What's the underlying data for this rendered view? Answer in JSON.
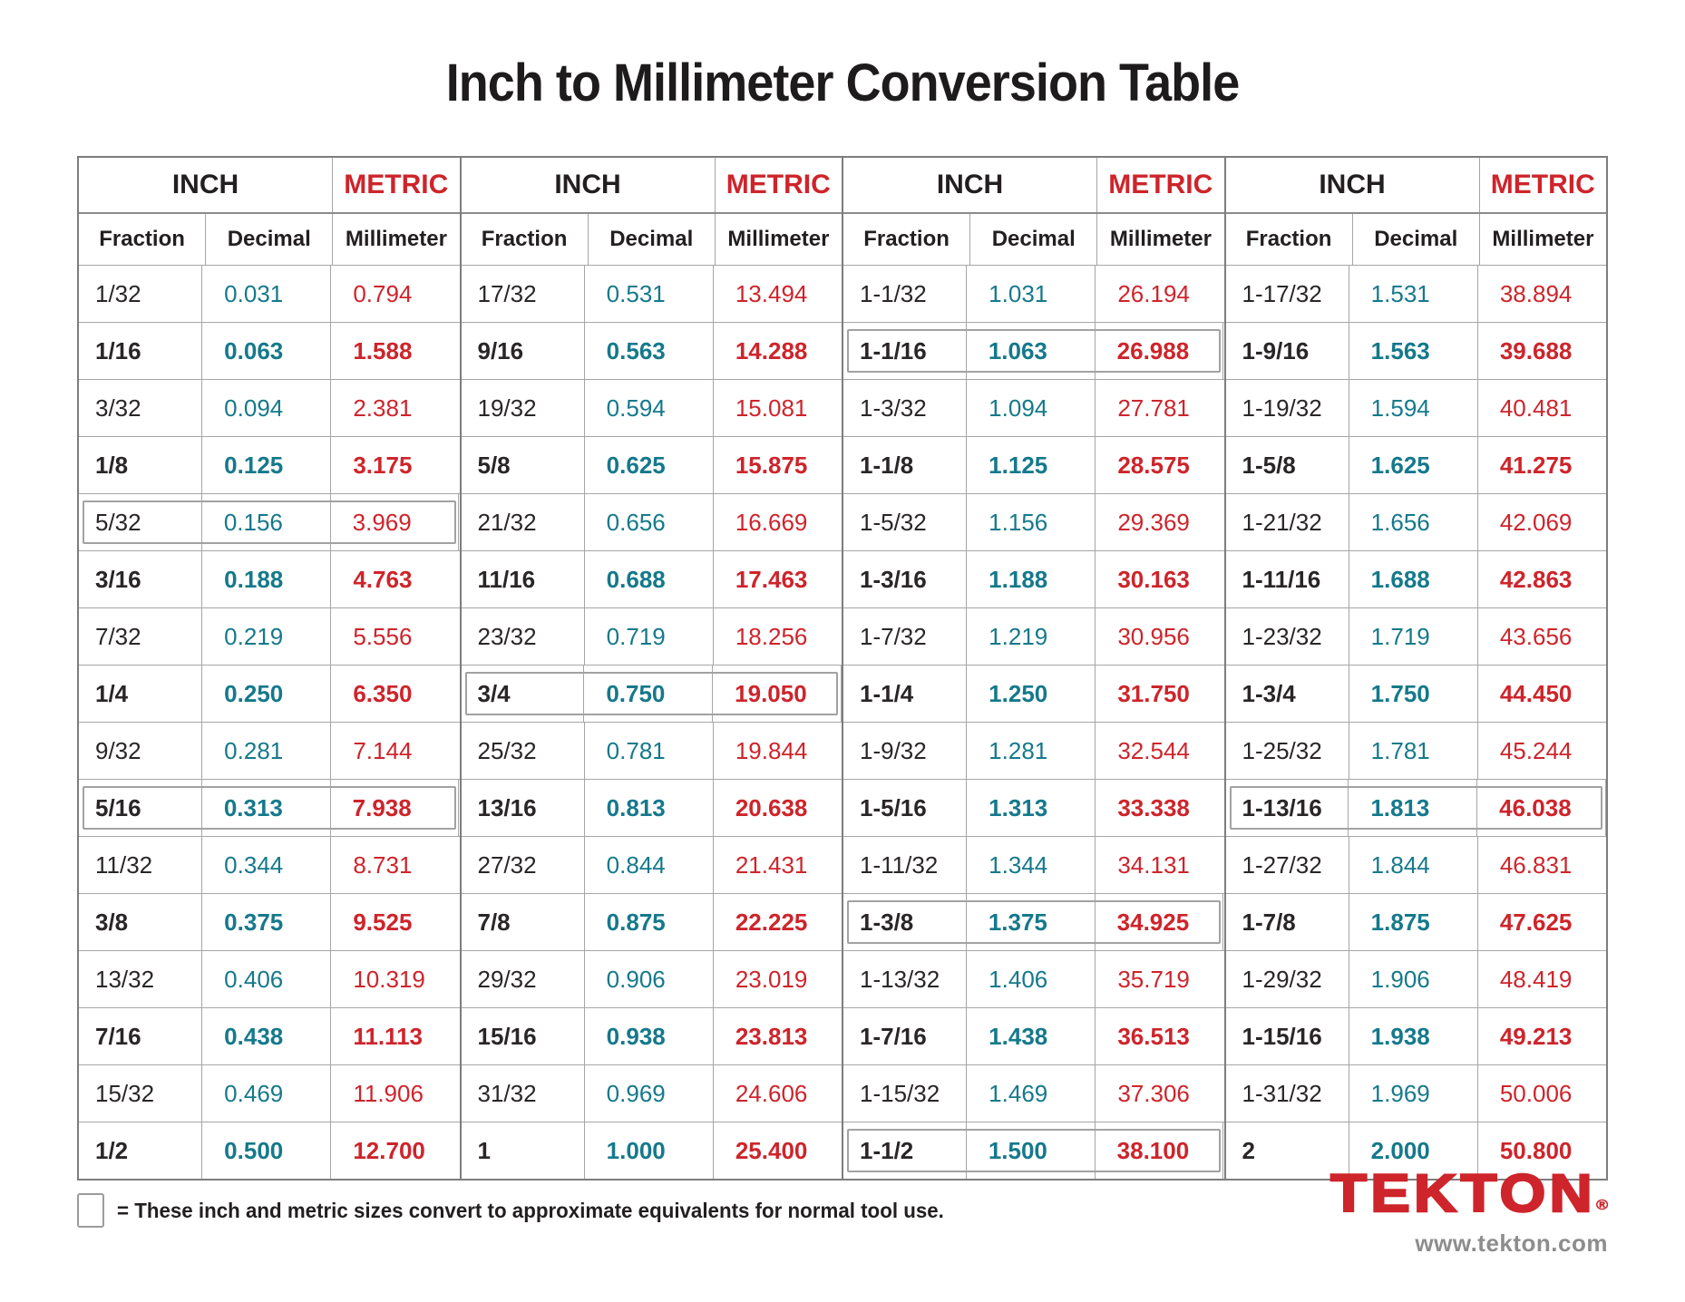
{
  "page": {
    "title": "Inch to Millimeter Conversion Table"
  },
  "colors": {
    "accent_red": "#ce242b",
    "value_teal": "#15798b",
    "text_dark": "#231f20",
    "border_dark": "#7d7d7d",
    "border_light": "#a6a6a6",
    "gray_text": "#8d8d8d"
  },
  "table": {
    "inch_label": "INCH",
    "metric_label": "METRIC",
    "columns": [
      "Fraction",
      "Decimal",
      "Millimeter"
    ],
    "groups": [
      {
        "rows": [
          {
            "fraction": "1/32",
            "decimal": "0.031",
            "mm": "0.794",
            "bold": false,
            "boxed": false
          },
          {
            "fraction": "1/16",
            "decimal": "0.063",
            "mm": "1.588",
            "bold": true,
            "boxed": false
          },
          {
            "fraction": "3/32",
            "decimal": "0.094",
            "mm": "2.381",
            "bold": false,
            "boxed": false
          },
          {
            "fraction": "1/8",
            "decimal": "0.125",
            "mm": "3.175",
            "bold": true,
            "boxed": false
          },
          {
            "fraction": "5/32",
            "decimal": "0.156",
            "mm": "3.969",
            "bold": false,
            "boxed": true
          },
          {
            "fraction": "3/16",
            "decimal": "0.188",
            "mm": "4.763",
            "bold": true,
            "boxed": false
          },
          {
            "fraction": "7/32",
            "decimal": "0.219",
            "mm": "5.556",
            "bold": false,
            "boxed": false
          },
          {
            "fraction": "1/4",
            "decimal": "0.250",
            "mm": "6.350",
            "bold": true,
            "boxed": false
          },
          {
            "fraction": "9/32",
            "decimal": "0.281",
            "mm": "7.144",
            "bold": false,
            "boxed": false
          },
          {
            "fraction": "5/16",
            "decimal": "0.313",
            "mm": "7.938",
            "bold": true,
            "boxed": true
          },
          {
            "fraction": "11/32",
            "decimal": "0.344",
            "mm": "8.731",
            "bold": false,
            "boxed": false
          },
          {
            "fraction": "3/8",
            "decimal": "0.375",
            "mm": "9.525",
            "bold": true,
            "boxed": false
          },
          {
            "fraction": "13/32",
            "decimal": "0.406",
            "mm": "10.319",
            "bold": false,
            "boxed": false
          },
          {
            "fraction": "7/16",
            "decimal": "0.438",
            "mm": "11.113",
            "bold": true,
            "boxed": false
          },
          {
            "fraction": "15/32",
            "decimal": "0.469",
            "mm": "11.906",
            "bold": false,
            "boxed": false
          },
          {
            "fraction": "1/2",
            "decimal": "0.500",
            "mm": "12.700",
            "bold": true,
            "boxed": false
          }
        ]
      },
      {
        "rows": [
          {
            "fraction": "17/32",
            "decimal": "0.531",
            "mm": "13.494",
            "bold": false,
            "boxed": false
          },
          {
            "fraction": "9/16",
            "decimal": "0.563",
            "mm": "14.288",
            "bold": true,
            "boxed": false
          },
          {
            "fraction": "19/32",
            "decimal": "0.594",
            "mm": "15.081",
            "bold": false,
            "boxed": false
          },
          {
            "fraction": "5/8",
            "decimal": "0.625",
            "mm": "15.875",
            "bold": true,
            "boxed": false
          },
          {
            "fraction": "21/32",
            "decimal": "0.656",
            "mm": "16.669",
            "bold": false,
            "boxed": false
          },
          {
            "fraction": "11/16",
            "decimal": "0.688",
            "mm": "17.463",
            "bold": true,
            "boxed": false
          },
          {
            "fraction": "23/32",
            "decimal": "0.719",
            "mm": "18.256",
            "bold": false,
            "boxed": false
          },
          {
            "fraction": "3/4",
            "decimal": "0.750",
            "mm": "19.050",
            "bold": true,
            "boxed": true
          },
          {
            "fraction": "25/32",
            "decimal": "0.781",
            "mm": "19.844",
            "bold": false,
            "boxed": false
          },
          {
            "fraction": "13/16",
            "decimal": "0.813",
            "mm": "20.638",
            "bold": true,
            "boxed": false
          },
          {
            "fraction": "27/32",
            "decimal": "0.844",
            "mm": "21.431",
            "bold": false,
            "boxed": false
          },
          {
            "fraction": "7/8",
            "decimal": "0.875",
            "mm": "22.225",
            "bold": true,
            "boxed": false
          },
          {
            "fraction": "29/32",
            "decimal": "0.906",
            "mm": "23.019",
            "bold": false,
            "boxed": false
          },
          {
            "fraction": "15/16",
            "decimal": "0.938",
            "mm": "23.813",
            "bold": true,
            "boxed": false
          },
          {
            "fraction": "31/32",
            "decimal": "0.969",
            "mm": "24.606",
            "bold": false,
            "boxed": false
          },
          {
            "fraction": "1",
            "decimal": "1.000",
            "mm": "25.400",
            "bold": true,
            "boxed": false
          }
        ]
      },
      {
        "rows": [
          {
            "fraction": "1-1/32",
            "decimal": "1.031",
            "mm": "26.194",
            "bold": false,
            "boxed": false
          },
          {
            "fraction": "1-1/16",
            "decimal": "1.063",
            "mm": "26.988",
            "bold": true,
            "boxed": true
          },
          {
            "fraction": "1-3/32",
            "decimal": "1.094",
            "mm": "27.781",
            "bold": false,
            "boxed": false
          },
          {
            "fraction": "1-1/8",
            "decimal": "1.125",
            "mm": "28.575",
            "bold": true,
            "boxed": false
          },
          {
            "fraction": "1-5/32",
            "decimal": "1.156",
            "mm": "29.369",
            "bold": false,
            "boxed": false
          },
          {
            "fraction": "1-3/16",
            "decimal": "1.188",
            "mm": "30.163",
            "bold": true,
            "boxed": false
          },
          {
            "fraction": "1-7/32",
            "decimal": "1.219",
            "mm": "30.956",
            "bold": false,
            "boxed": false
          },
          {
            "fraction": "1-1/4",
            "decimal": "1.250",
            "mm": "31.750",
            "bold": true,
            "boxed": false
          },
          {
            "fraction": "1-9/32",
            "decimal": "1.281",
            "mm": "32.544",
            "bold": false,
            "boxed": false
          },
          {
            "fraction": "1-5/16",
            "decimal": "1.313",
            "mm": "33.338",
            "bold": true,
            "boxed": false
          },
          {
            "fraction": "1-11/32",
            "decimal": "1.344",
            "mm": "34.131",
            "bold": false,
            "boxed": false
          },
          {
            "fraction": "1-3/8",
            "decimal": "1.375",
            "mm": "34.925",
            "bold": true,
            "boxed": true
          },
          {
            "fraction": "1-13/32",
            "decimal": "1.406",
            "mm": "35.719",
            "bold": false,
            "boxed": false
          },
          {
            "fraction": "1-7/16",
            "decimal": "1.438",
            "mm": "36.513",
            "bold": true,
            "boxed": false
          },
          {
            "fraction": "1-15/32",
            "decimal": "1.469",
            "mm": "37.306",
            "bold": false,
            "boxed": false
          },
          {
            "fraction": "1-1/2",
            "decimal": "1.500",
            "mm": "38.100",
            "bold": true,
            "boxed": true
          }
        ]
      },
      {
        "rows": [
          {
            "fraction": "1-17/32",
            "decimal": "1.531",
            "mm": "38.894",
            "bold": false,
            "boxed": false
          },
          {
            "fraction": "1-9/16",
            "decimal": "1.563",
            "mm": "39.688",
            "bold": true,
            "boxed": false
          },
          {
            "fraction": "1-19/32",
            "decimal": "1.594",
            "mm": "40.481",
            "bold": false,
            "boxed": false
          },
          {
            "fraction": "1-5/8",
            "decimal": "1.625",
            "mm": "41.275",
            "bold": true,
            "boxed": false
          },
          {
            "fraction": "1-21/32",
            "decimal": "1.656",
            "mm": "42.069",
            "bold": false,
            "boxed": false
          },
          {
            "fraction": "1-11/16",
            "decimal": "1.688",
            "mm": "42.863",
            "bold": true,
            "boxed": false
          },
          {
            "fraction": "1-23/32",
            "decimal": "1.719",
            "mm": "43.656",
            "bold": false,
            "boxed": false
          },
          {
            "fraction": "1-3/4",
            "decimal": "1.750",
            "mm": "44.450",
            "bold": true,
            "boxed": false
          },
          {
            "fraction": "1-25/32",
            "decimal": "1.781",
            "mm": "45.244",
            "bold": false,
            "boxed": false
          },
          {
            "fraction": "1-13/16",
            "decimal": "1.813",
            "mm": "46.038",
            "bold": true,
            "boxed": true
          },
          {
            "fraction": "1-27/32",
            "decimal": "1.844",
            "mm": "46.831",
            "bold": false,
            "boxed": false
          },
          {
            "fraction": "1-7/8",
            "decimal": "1.875",
            "mm": "47.625",
            "bold": true,
            "boxed": false
          },
          {
            "fraction": "1-29/32",
            "decimal": "1.906",
            "mm": "48.419",
            "bold": false,
            "boxed": false
          },
          {
            "fraction": "1-15/16",
            "decimal": "1.938",
            "mm": "49.213",
            "bold": true,
            "boxed": false
          },
          {
            "fraction": "1-31/32",
            "decimal": "1.969",
            "mm": "50.006",
            "bold": false,
            "boxed": false
          },
          {
            "fraction": "2",
            "decimal": "2.000",
            "mm": "50.800",
            "bold": true,
            "boxed": false
          }
        ]
      }
    ]
  },
  "legend": {
    "text": "= These inch and metric sizes convert to approximate equivalents for normal tool use."
  },
  "footer": {
    "brand": "TEKTON",
    "registered": "®",
    "website": "www.tekton.com"
  }
}
